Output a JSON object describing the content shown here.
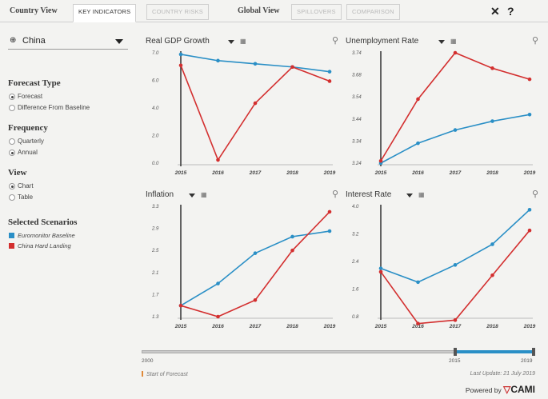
{
  "topbar": {
    "country_view": "Country View",
    "global_view": "Global View",
    "tabs_country": [
      "KEY INDICATORS",
      "COUNTRY RISKS"
    ],
    "tabs_global": [
      "SPILLOVERS",
      "COMPARISON"
    ],
    "close_symbol": "✕",
    "help_symbol": "?"
  },
  "sidebar": {
    "country": "China",
    "forecast_type": {
      "title": "Forecast Type",
      "options": [
        "Forecast",
        "Difference From Baseline"
      ],
      "selected": 0
    },
    "frequency": {
      "title": "Frequency",
      "options": [
        "Quarterly",
        "Annual"
      ],
      "selected": 1
    },
    "view": {
      "title": "View",
      "options": [
        "Chart",
        "Table"
      ],
      "selected": 0
    },
    "scenarios": {
      "title": "Selected Scenarios",
      "items": [
        {
          "label": "Euromonitor Baseline",
          "color": "#2a8fc6"
        },
        {
          "label": "China Hard Landing",
          "color": "#d32f2f"
        }
      ]
    }
  },
  "colors": {
    "baseline": "#2a8fc6",
    "hard_landing": "#d32f2f",
    "marker": "#333333"
  },
  "chart_data": [
    {
      "type": "line",
      "title": "Real GDP Growth",
      "categories": [
        "2015",
        "2016",
        "2017",
        "2018",
        "2019"
      ],
      "yticks": [
        "7.0",
        "6.0",
        "4.0",
        "2.0",
        "0.0"
      ],
      "ylim": [
        0,
        7
      ],
      "series": [
        {
          "name": "Euromonitor Baseline",
          "values": [
            6.9,
            6.5,
            6.3,
            6.1,
            5.8
          ]
        },
        {
          "name": "China Hard Landing",
          "values": [
            6.2,
            0.2,
            3.8,
            6.1,
            5.2
          ]
        }
      ]
    },
    {
      "type": "line",
      "title": "Unemployment Rate",
      "categories": [
        "2015",
        "2016",
        "2017",
        "2018",
        "2019"
      ],
      "yticks": [
        "3.74",
        "3.68",
        "3.54",
        "3.44",
        "3.34",
        "3.24"
      ],
      "ylim": [
        3.24,
        3.74
      ],
      "series": [
        {
          "name": "Euromonitor Baseline",
          "values": [
            3.24,
            3.33,
            3.39,
            3.43,
            3.46
          ]
        },
        {
          "name": "China Hard Landing",
          "values": [
            3.25,
            3.53,
            3.74,
            3.67,
            3.62
          ]
        }
      ]
    },
    {
      "type": "line",
      "title": "Inflation",
      "categories": [
        "2015",
        "2016",
        "2017",
        "2018",
        "2019"
      ],
      "yticks": [
        "3.3",
        "2.9",
        "2.5",
        "2.1",
        "1.7",
        "1.3"
      ],
      "ylim": [
        1.3,
        3.3
      ],
      "series": [
        {
          "name": "Euromonitor Baseline",
          "values": [
            1.5,
            1.9,
            2.45,
            2.75,
            2.85
          ]
        },
        {
          "name": "China Hard Landing",
          "values": [
            1.5,
            1.3,
            1.6,
            2.5,
            3.2
          ]
        }
      ]
    },
    {
      "type": "line",
      "title": "Interest Rate",
      "categories": [
        "2015",
        "2016",
        "2017",
        "2018",
        "2019"
      ],
      "yticks": [
        "4.0",
        "3.2",
        "2.4",
        "1.6",
        "0.8"
      ],
      "ylim": [
        0.8,
        4.0
      ],
      "series": [
        {
          "name": "Euromonitor Baseline",
          "values": [
            2.2,
            1.8,
            2.3,
            2.9,
            3.9
          ]
        },
        {
          "name": "China Hard Landing",
          "values": [
            2.1,
            0.6,
            0.7,
            2.0,
            3.3
          ]
        }
      ]
    }
  ],
  "timeline": {
    "start": "2000",
    "forecast_start": "2015",
    "end": "2019",
    "forecast_label": "Start of Forecast",
    "last_update": "Last Update: 21 July 2019",
    "powered_by": "Powered by",
    "brand": "CAMI",
    "brand_mark": "▽"
  }
}
